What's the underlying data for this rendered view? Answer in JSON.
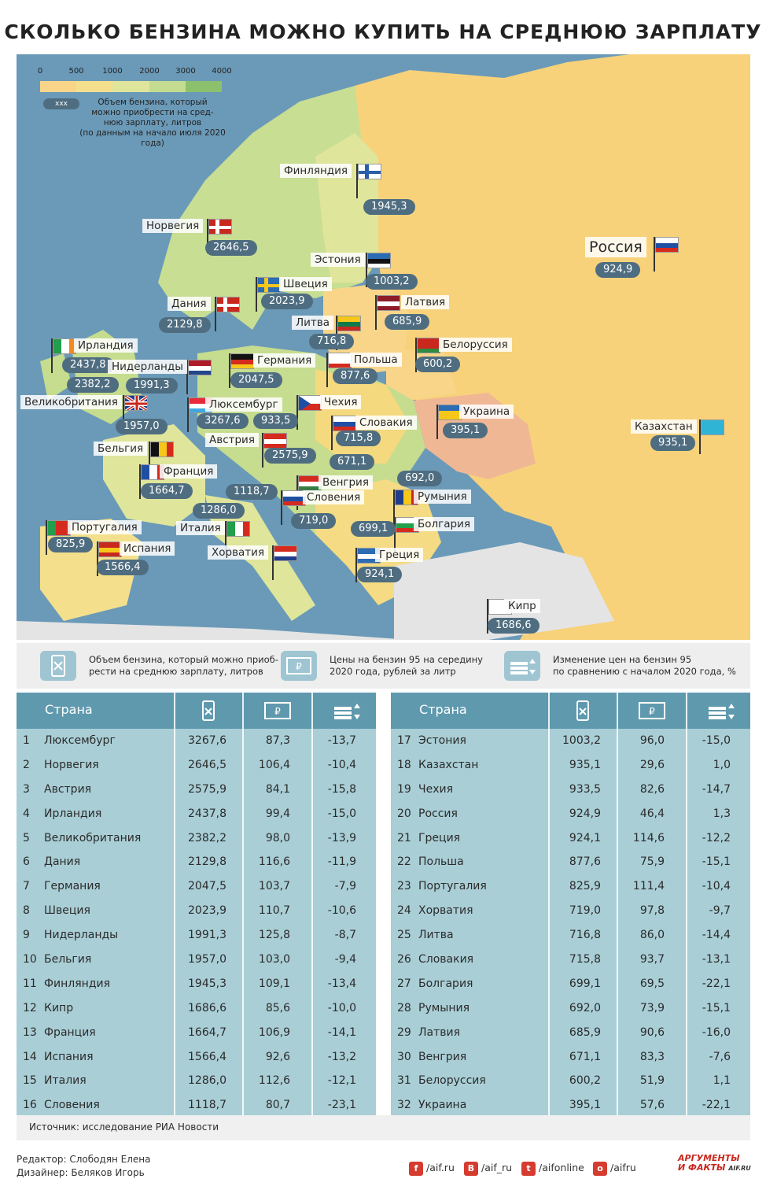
{
  "title": "СКОЛЬКО БЕНЗИНА МОЖНО КУПИТЬ НА СРЕДНЮЮ ЗАРПЛАТУ",
  "legend": {
    "ticks": [
      "0",
      "500",
      "1000",
      "2000",
      "3000",
      "4000"
    ],
    "key_text": "ххх",
    "description_1": "Объем бензина, который",
    "description_2": "можно приобрести на сред-",
    "description_3": "нюю зарплату, литров",
    "description_4": "(по данным на начало июля 2020 года)",
    "colors": [
      "#f2b28e",
      "#f9d58a",
      "#f4e08c",
      "#dfe59a",
      "#c3dc8f",
      "#8cc06c"
    ]
  },
  "map_countries": [
    {
      "name": "Финляндия",
      "value": "1945,3"
    },
    {
      "name": "Норвегия",
      "value": "2646,5"
    },
    {
      "name": "Эстония",
      "value": "1003,2"
    },
    {
      "name": "Россия",
      "value": "924,9"
    },
    {
      "name": "Швеция",
      "value": "2023,9"
    },
    {
      "name": "Дания",
      "value": "2129,8"
    },
    {
      "name": "Латвия",
      "value": "685,9"
    },
    {
      "name": "Литва",
      "value": "716,8"
    },
    {
      "name": "Белоруссия",
      "value": "600,2"
    },
    {
      "name": "Ирландия",
      "value": "2437,8"
    },
    {
      "name": "Нидерланды",
      "value": "1991,3"
    },
    {
      "name": "Германия",
      "value": "2047,5"
    },
    {
      "name": "Польша",
      "value": "877,6"
    },
    {
      "name": "Великобритания",
      "value": "2382,2"
    },
    {
      "name": "Люксембург",
      "value": "3267,6"
    },
    {
      "name": "Чехия",
      "value": "933,5"
    },
    {
      "name": "Украина",
      "value": "395,1"
    },
    {
      "name": "Казахстан",
      "value": "935,1"
    },
    {
      "name": "Словакия",
      "value": "715,8"
    },
    {
      "name": "Бельгия",
      "value": "1957,0"
    },
    {
      "name": "Австрия",
      "value": "2575,9"
    },
    {
      "name": "Венгрия",
      "value": "671,1"
    },
    {
      "name": "Франция",
      "value": "1664,7"
    },
    {
      "name": "Словения",
      "value": "1118,7"
    },
    {
      "name": "Румыния",
      "value": "692,0"
    },
    {
      "name": "Италия",
      "value": "1286,0"
    },
    {
      "name": "Хорватия",
      "value": "719,0"
    },
    {
      "name": "Португалия",
      "value": "825,9"
    },
    {
      "name": "Болгария",
      "value": "699,1"
    },
    {
      "name": "Испания",
      "value": "1566,4"
    },
    {
      "name": "Греция",
      "value": "924,1"
    },
    {
      "name": "Кипр",
      "value": "1686,6"
    }
  ],
  "icon_legend": [
    {
      "icon": "fuel-can-icon",
      "line1": "Объем бензина, который можно приоб-",
      "line2": "рести на среднюю зарплату, литров"
    },
    {
      "icon": "ruble-banknote-icon",
      "line1": "Цены на бензин 95 на середину",
      "line2": "2020 года, рублей за литр"
    },
    {
      "icon": "price-change-icon",
      "line1": "Изменение цен  на бензин 95",
      "line2": "по сравнению с началом 2020 года, %"
    }
  ],
  "table_header": {
    "country": "Страна"
  },
  "table_left": [
    {
      "rank": "1",
      "country": "Люксембург",
      "volume": "3267,6",
      "price": "87,3",
      "change": "-13,7"
    },
    {
      "rank": "2",
      "country": "Норвегия",
      "volume": "2646,5",
      "price": "106,4",
      "change": "-10,4"
    },
    {
      "rank": "3",
      "country": "Австрия",
      "volume": "2575,9",
      "price": "84,1",
      "change": "-15,8"
    },
    {
      "rank": "4",
      "country": "Ирландия",
      "volume": "2437,8",
      "price": "99,4",
      "change": "-15,0"
    },
    {
      "rank": "5",
      "country": "Великобритания",
      "volume": "2382,2",
      "price": "98,0",
      "change": "-13,9"
    },
    {
      "rank": "6",
      "country": "Дания",
      "volume": "2129,8",
      "price": "116,6",
      "change": "-11,9"
    },
    {
      "rank": "7",
      "country": "Германия",
      "volume": "2047,5",
      "price": "103,7",
      "change": "-7,9"
    },
    {
      "rank": "8",
      "country": "Швеция",
      "volume": "2023,9",
      "price": "110,7",
      "change": "-10,6"
    },
    {
      "rank": "9",
      "country": "Нидерланды",
      "volume": "1991,3",
      "price": "125,8",
      "change": "-8,7"
    },
    {
      "rank": "10",
      "country": "Бельгия",
      "volume": "1957,0",
      "price": "103,0",
      "change": "-9,4"
    },
    {
      "rank": "11",
      "country": "Финляндия",
      "volume": "1945,3",
      "price": "109,1",
      "change": "-13,4"
    },
    {
      "rank": "12",
      "country": "Кипр",
      "volume": "1686,6",
      "price": "85,6",
      "change": "-10,0"
    },
    {
      "rank": "13",
      "country": "Франция",
      "volume": "1664,7",
      "price": "106,9",
      "change": "-14,1"
    },
    {
      "rank": "14",
      "country": "Испания",
      "volume": "1566,4",
      "price": "92,6",
      "change": "-13,2"
    },
    {
      "rank": "15",
      "country": "Италия",
      "volume": "1286,0",
      "price": "112,6",
      "change": "-12,1"
    },
    {
      "rank": "16",
      "country": "Словения",
      "volume": "1118,7",
      "price": "80,7",
      "change": "-23,1"
    }
  ],
  "table_right": [
    {
      "rank": "17",
      "country": "Эстония",
      "volume": "1003,2",
      "price": "96,0",
      "change": "-15,0"
    },
    {
      "rank": "18",
      "country": "Казахстан",
      "volume": "935,1",
      "price": "29,6",
      "change": "1,0"
    },
    {
      "rank": "19",
      "country": "Чехия",
      "volume": "933,5",
      "price": "82,6",
      "change": "-14,7"
    },
    {
      "rank": "20",
      "country": "Россия",
      "volume": "924,9",
      "price": "46,4",
      "change": "1,3"
    },
    {
      "rank": "21",
      "country": "Греция",
      "volume": "924,1",
      "price": "114,6",
      "change": "-12,2"
    },
    {
      "rank": "22",
      "country": "Польша",
      "volume": "877,6",
      "price": "75,9",
      "change": "-15,1"
    },
    {
      "rank": "23",
      "country": "Португалия",
      "volume": "825,9",
      "price": "111,4",
      "change": "-10,4"
    },
    {
      "rank": "24",
      "country": "Хорватия",
      "volume": "719,0",
      "price": "97,8",
      "change": "-9,7"
    },
    {
      "rank": "25",
      "country": "Литва",
      "volume": "716,8",
      "price": "86,0",
      "change": "-14,4"
    },
    {
      "rank": "26",
      "country": "Словакия",
      "volume": "715,8",
      "price": "93,7",
      "change": "-13,1"
    },
    {
      "rank": "27",
      "country": "Болгария",
      "volume": "699,1",
      "price": "69,5",
      "change": "-22,1"
    },
    {
      "rank": "28",
      "country": "Румыния",
      "volume": "692,0",
      "price": "73,9",
      "change": "-15,1"
    },
    {
      "rank": "29",
      "country": "Латвия",
      "volume": "685,9",
      "price": "90,6",
      "change": "-16,0"
    },
    {
      "rank": "30",
      "country": "Венгрия",
      "volume": "671,1",
      "price": "83,3",
      "change": "-7,6"
    },
    {
      "rank": "31",
      "country": "Белоруссия",
      "volume": "600,2",
      "price": "51,9",
      "change": "1,1"
    },
    {
      "rank": "32",
      "country": "Украина",
      "volume": "395,1",
      "price": "57,6",
      "change": "-22,1"
    }
  ],
  "source": "Источник: исследование РИА Новости",
  "credits": {
    "editor": "Редактор: Слободян Елена",
    "designer": "Дизайнер: Беляков Игорь"
  },
  "social": [
    {
      "icon": "facebook-icon",
      "glyph": "f",
      "label": "/aif.ru"
    },
    {
      "icon": "vk-icon",
      "glyph": "В",
      "label": "/aif_ru"
    },
    {
      "icon": "twitter-icon",
      "glyph": "t",
      "label": "/aifonline"
    },
    {
      "icon": "odnoklassniki-icon",
      "glyph": "о",
      "label": "/aifru"
    }
  ],
  "logo": {
    "line1": "АРГУМЕНТЫ",
    "line2": "И ФАКТЫ",
    "domain": "AIF.RU"
  }
}
